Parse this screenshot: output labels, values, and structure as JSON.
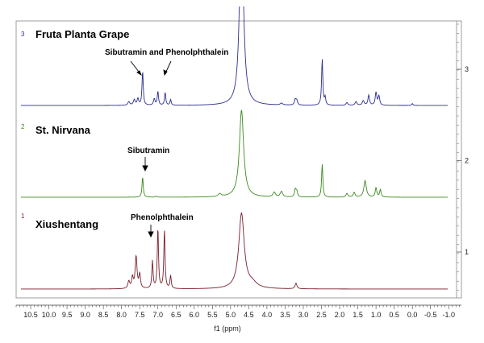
{
  "chart_data": {
    "type": "line",
    "xlabel": "f1 (ppm)",
    "xlim": [
      10.9,
      -1.35
    ],
    "x_reversed": true,
    "xticks": [
      10.5,
      10.0,
      9.5,
      9.0,
      8.5,
      8.0,
      7.5,
      7.0,
      6.5,
      6.0,
      5.5,
      5.0,
      4.5,
      4.0,
      3.5,
      3.0,
      2.5,
      2.0,
      1.5,
      1.0,
      0.5,
      0.0,
      -0.5,
      -1.0
    ],
    "xtick_labels": [
      "10.5",
      "10.0",
      "9.5",
      "9.0",
      "8.5",
      "8.0",
      "7.5",
      "7.0",
      "6.5",
      "6.0",
      "5.5",
      "5.0",
      "4.5",
      "4.0",
      "3.5",
      "3.0",
      "2.5",
      "2.0",
      "1.5",
      "1.0",
      "0.5",
      "0.0",
      "-0.5",
      "-1.0"
    ],
    "right_axis_ticks": [
      "1",
      "2",
      "3"
    ],
    "grid": false,
    "series": [
      {
        "index": "3",
        "name": "Fruta Planta Grape",
        "color": "#2b2f8f",
        "baseline_offset": 3,
        "peaks": [
          {
            "ppm": 7.8,
            "height": 0.04,
            "width": 0.03
          },
          {
            "ppm": 7.65,
            "height": 0.06,
            "width": 0.03
          },
          {
            "ppm": 7.55,
            "height": 0.07,
            "width": 0.025
          },
          {
            "ppm": 7.42,
            "height": 0.37,
            "width": 0.02
          },
          {
            "ppm": 7.1,
            "height": 0.07,
            "width": 0.025
          },
          {
            "ppm": 7.0,
            "height": 0.15,
            "width": 0.02
          },
          {
            "ppm": 6.8,
            "height": 0.14,
            "width": 0.02
          },
          {
            "ppm": 6.65,
            "height": 0.06,
            "width": 0.02
          },
          {
            "ppm": 4.7,
            "height": 2.2,
            "width": 0.06
          },
          {
            "ppm": 3.6,
            "height": 0.02,
            "width": 0.04
          },
          {
            "ppm": 3.22,
            "height": 0.06,
            "width": 0.025
          },
          {
            "ppm": 3.18,
            "height": 0.05,
            "width": 0.025
          },
          {
            "ppm": 2.48,
            "height": 0.5,
            "width": 0.02
          },
          {
            "ppm": 2.4,
            "height": 0.08,
            "width": 0.02
          },
          {
            "ppm": 1.8,
            "height": 0.03,
            "width": 0.03
          },
          {
            "ppm": 1.55,
            "height": 0.04,
            "width": 0.03
          },
          {
            "ppm": 1.35,
            "height": 0.05,
            "width": 0.03
          },
          {
            "ppm": 1.2,
            "height": 0.11,
            "width": 0.025
          },
          {
            "ppm": 1.0,
            "height": 0.14,
            "width": 0.025
          },
          {
            "ppm": 0.92,
            "height": 0.1,
            "width": 0.025
          },
          {
            "ppm": 0.0,
            "height": 0.02,
            "width": 0.02
          }
        ]
      },
      {
        "index": "2",
        "name": "St. Nirvana",
        "color": "#3a8a1e",
        "baseline_offset": 2,
        "peaks": [
          {
            "ppm": 7.42,
            "height": 0.22,
            "width": 0.02
          },
          {
            "ppm": 7.05,
            "height": 0.01,
            "width": 0.03
          },
          {
            "ppm": 5.3,
            "height": 0.03,
            "width": 0.05
          },
          {
            "ppm": 4.7,
            "height": 0.95,
            "width": 0.07
          },
          {
            "ppm": 3.8,
            "height": 0.05,
            "width": 0.04
          },
          {
            "ppm": 3.6,
            "height": 0.06,
            "width": 0.04
          },
          {
            "ppm": 3.22,
            "height": 0.08,
            "width": 0.025
          },
          {
            "ppm": 3.18,
            "height": 0.06,
            "width": 0.025
          },
          {
            "ppm": 2.48,
            "height": 0.36,
            "width": 0.02
          },
          {
            "ppm": 1.8,
            "height": 0.04,
            "width": 0.03
          },
          {
            "ppm": 1.6,
            "height": 0.05,
            "width": 0.03
          },
          {
            "ppm": 1.3,
            "height": 0.18,
            "width": 0.04
          },
          {
            "ppm": 1.0,
            "height": 0.1,
            "width": 0.025
          },
          {
            "ppm": 0.88,
            "height": 0.08,
            "width": 0.025
          }
        ]
      },
      {
        "index": "1",
        "name": "Xiushentang",
        "color": "#7a1e2b",
        "baseline_offset": 1,
        "peaks": [
          {
            "ppm": 7.8,
            "height": 0.08,
            "width": 0.03
          },
          {
            "ppm": 7.7,
            "height": 0.12,
            "width": 0.025
          },
          {
            "ppm": 7.6,
            "height": 0.35,
            "width": 0.03
          },
          {
            "ppm": 7.5,
            "height": 0.15,
            "width": 0.025
          },
          {
            "ppm": 7.15,
            "height": 0.3,
            "width": 0.02
          },
          {
            "ppm": 7.0,
            "height": 0.66,
            "width": 0.02
          },
          {
            "ppm": 6.82,
            "height": 0.64,
            "width": 0.02
          },
          {
            "ppm": 6.65,
            "height": 0.14,
            "width": 0.02
          },
          {
            "ppm": 4.7,
            "height": 0.82,
            "width": 0.09
          },
          {
            "ppm": 4.4,
            "height": 0.05,
            "width": 0.15
          },
          {
            "ppm": 3.2,
            "height": 0.06,
            "width": 0.03
          }
        ]
      }
    ],
    "annotations": [
      {
        "text": "Sibutramin and Phenolphthalein",
        "series": "3"
      },
      {
        "text": "Sibutramin",
        "series": "2"
      },
      {
        "text": "Phenolphthalein",
        "series": "1"
      }
    ]
  }
}
